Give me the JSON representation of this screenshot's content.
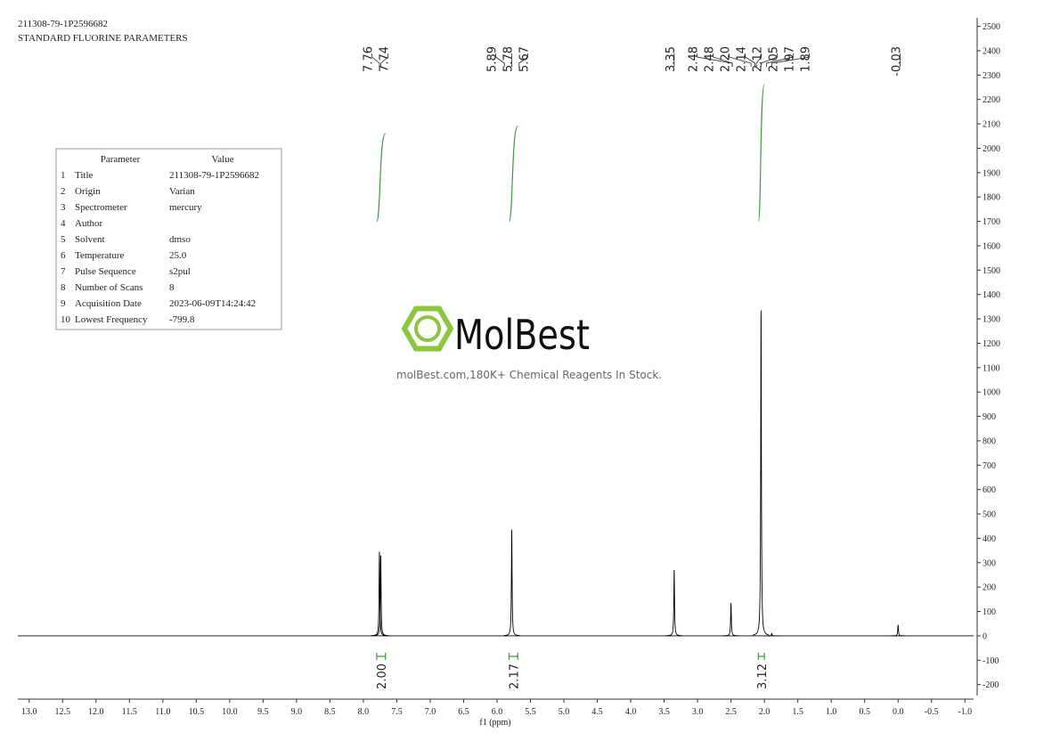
{
  "header": {
    "lines": [
      "211308-79-1P2596682",
      "STANDARD FLUORINE PARAMETERS"
    ]
  },
  "parameters": {
    "columns": [
      "Parameter",
      "Value"
    ],
    "rows": [
      [
        "1",
        "Title",
        "211308-79-1P2596682"
      ],
      [
        "2",
        "Origin",
        "Varian"
      ],
      [
        "3",
        "Spectrometer",
        "mercury"
      ],
      [
        "4",
        "Author"
      ],
      [
        "5",
        "Solvent",
        "dmso"
      ],
      [
        "6",
        "Temperature",
        "25.0"
      ],
      [
        "7",
        "Pulse Sequence",
        "s2pul"
      ],
      [
        "8",
        "Number of Scans",
        "8"
      ],
      [
        "9",
        "Acquisition Date",
        "2023-06-09T14:24:42"
      ],
      [
        "10",
        "Lowest Frequency",
        "-799.8"
      ]
    ]
  },
  "watermark": {
    "brand": "MolBest",
    "tagline": "molBest.com,180K+ Chemical Reagents In Stock."
  },
  "chart_data": {
    "type": "spectrum",
    "xlabel": "f1 (ppm)",
    "color": "#000000",
    "xlim": [
      13.17,
      -1.13
    ],
    "xticks": [
      {
        "value": 13,
        "label": "13.0"
      },
      12.5,
      {
        "value": 12,
        "label": "12.0"
      },
      11.5,
      {
        "value": 11,
        "label": "11.0"
      },
      10.5,
      {
        "value": 10,
        "label": "10.0"
      },
      9.5,
      {
        "value": 9,
        "label": "9.0"
      },
      8.5,
      {
        "value": 8,
        "label": "8.0"
      },
      7.5,
      {
        "value": 7,
        "label": "7.0"
      },
      6.5,
      {
        "value": 6,
        "label": "6.0"
      },
      5.5,
      {
        "value": 5,
        "label": "5.0"
      },
      4.5,
      {
        "value": 4,
        "label": "4.0"
      },
      3.5,
      {
        "value": 3,
        "label": "3.0"
      },
      2.5,
      {
        "value": 2,
        "label": "2.0"
      },
      1.5,
      {
        "value": 1,
        "label": "1.0"
      },
      0.5,
      {
        "value": 0,
        "label": "0.0"
      },
      -0.5,
      {
        "value": -1,
        "label": "-1.0"
      }
    ],
    "ylim": [
      -245,
      2535
    ],
    "yticks": [
      -200,
      -100,
      0,
      100,
      200,
      300,
      400,
      500,
      600,
      700,
      800,
      900,
      1000,
      1100,
      1200,
      1300,
      1400,
      1500,
      1600,
      1700,
      1800,
      1900,
      2000,
      2100,
      2200,
      2300,
      2400,
      2500
    ],
    "peaks": {
      "x": [
        7.76,
        7.74,
        5.78,
        3.35,
        2.5,
        2.05,
        1.89,
        0.0
      ],
      "values": [
        345,
        330,
        435,
        270,
        135,
        1335,
        10,
        45
      ]
    },
    "peak_labels": [
      7.76,
      7.74,
      5.89,
      5.78,
      5.67,
      3.35,
      2.48,
      2.48,
      {
        "value": 2.2,
        "label": "2.20"
      },
      2.14,
      2.12,
      2.05,
      1.97,
      1.89,
      -0.03
    ],
    "integrals": {
      "color": "#3a9a3a",
      "ranges": [
        [
          7.8,
          7.67
        ],
        [
          5.82,
          5.69
        ],
        [
          2.09,
          2.0
        ]
      ],
      "values": [
        2.0,
        2.17,
        3.12
      ],
      "value_labels": [
        "2.00",
        "2.17",
        "3.12"
      ]
    }
  }
}
